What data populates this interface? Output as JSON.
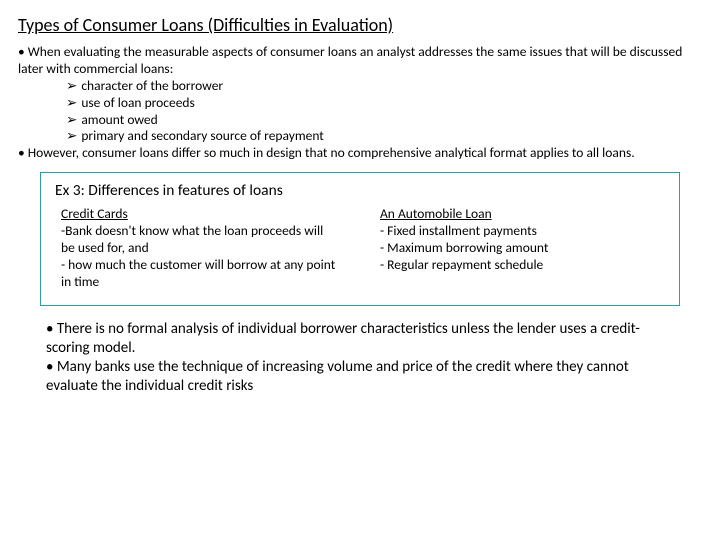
{
  "title": "Types of Consumer Loans (Difficulties in Evaluation)",
  "intro1": "• When evaluating the measurable aspects of consumer loans an analyst addresses the same issues that will be discussed later with commercial loans:",
  "arrow_items": [
    "character of the borrower",
    "use of loan proceeds",
    "amount owed",
    "primary and secondary source of repayment"
  ],
  "intro2": "• However, consumer loans differ so much in design that no comprehensive analytical format applies to all loans.",
  "box": {
    "title": "Ex 3: Differences in features of loans",
    "left": {
      "head": "Credit Cards",
      "lines": [
        "-Bank doesn't know what the loan proceeds will be used for, and",
        "- how much the customer will borrow at any point in time"
      ]
    },
    "right": {
      "head": "An Automobile Loan",
      "lines": [
        "- Fixed installment payments",
        "- Maximum borrowing amount",
        "- Regular repayment schedule"
      ]
    }
  },
  "lower1": "• There is no formal analysis of individual borrower characteristics unless the lender uses a credit-scoring model.",
  "lower2": "• Many banks use the technique of increasing volume and price of the credit where they cannot evaluate the individual credit risks",
  "colors": {
    "box_border": "#2e9ca6",
    "text": "#000000",
    "bg": "#ffffff"
  },
  "arrow_glyph": "➢"
}
